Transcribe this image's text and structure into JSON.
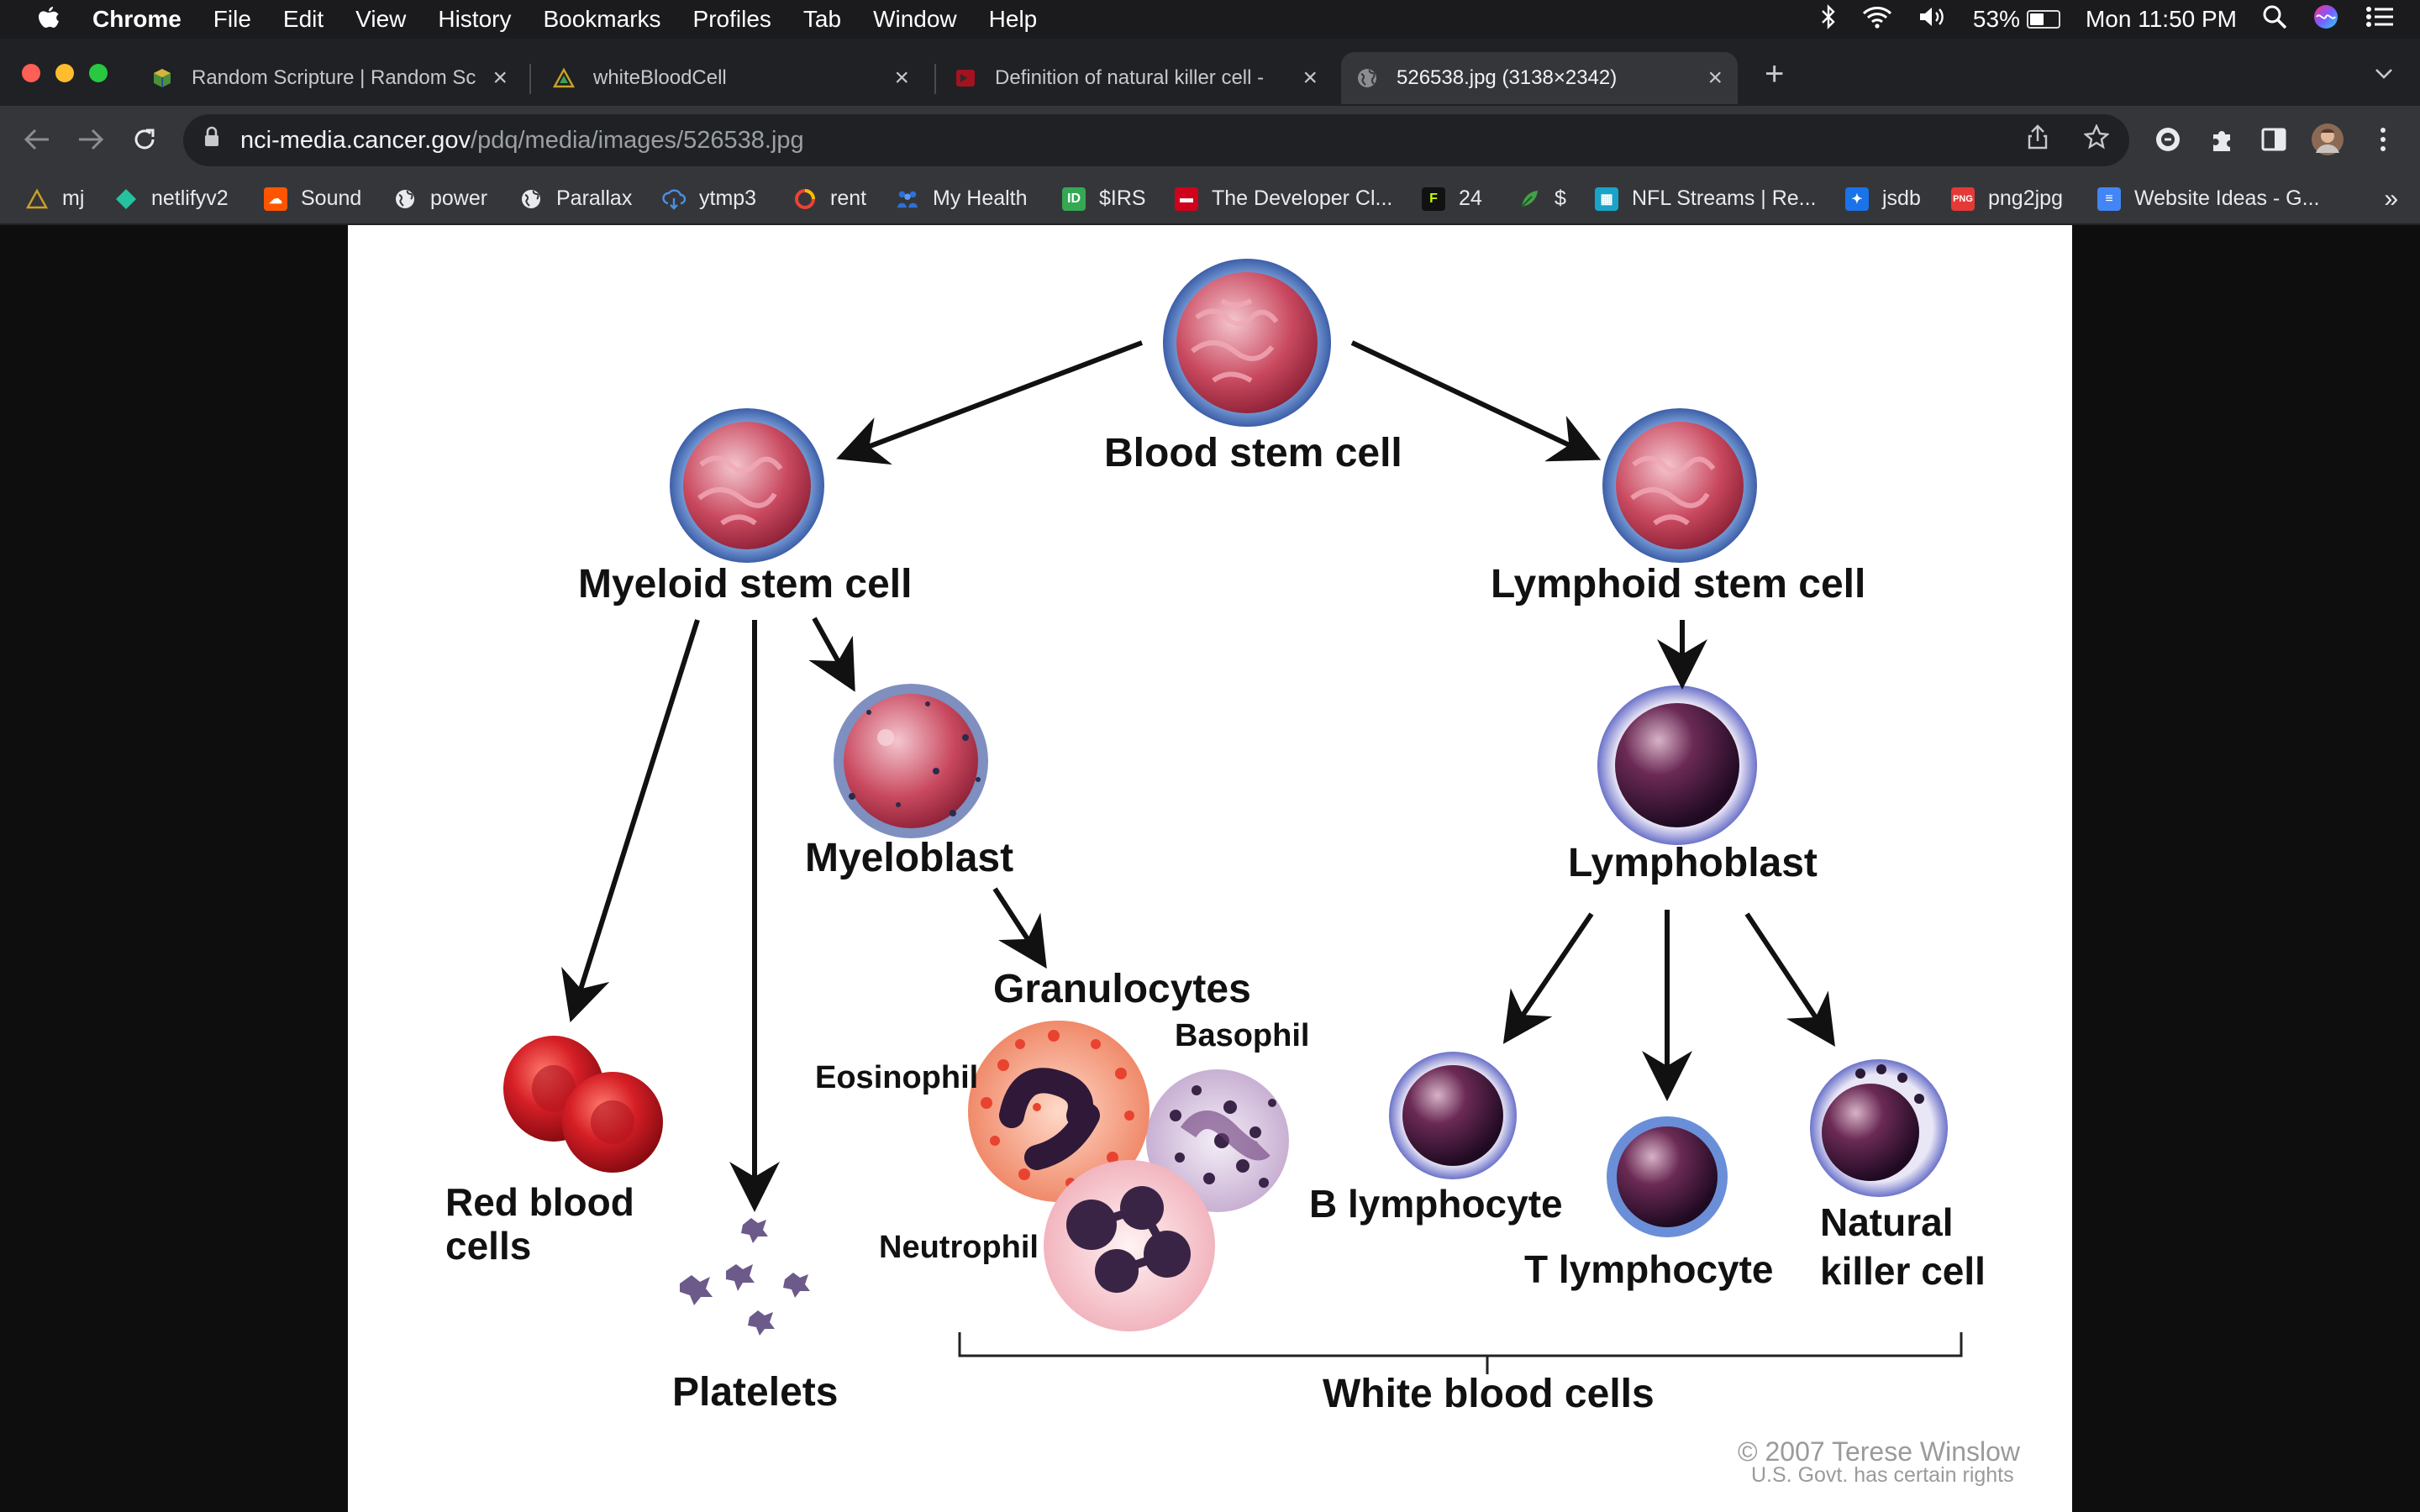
{
  "menubar": {
    "app": "Chrome",
    "items": [
      "File",
      "Edit",
      "View",
      "History",
      "Bookmarks",
      "Profiles",
      "Tab",
      "Window",
      "Help"
    ],
    "battery_percent": "53%",
    "battery_level": 0.53,
    "clock": "Mon 11:50 PM"
  },
  "tabs": [
    {
      "title": "Random Scripture | Random Sc",
      "icon": "cube-icon",
      "active": false
    },
    {
      "title": "whiteBloodCell",
      "icon": "triangle-icon",
      "active": false
    },
    {
      "title": "Definition of natural killer cell -",
      "icon": "nci-icon",
      "active": false
    },
    {
      "title": "526538.jpg (3138×2342)",
      "icon": "globe-icon",
      "active": true
    }
  ],
  "address": {
    "host": "nci-media.cancer.gov",
    "path": "/pdq/media/images/526538.jpg"
  },
  "bookmarks": [
    {
      "label": "mj",
      "color": "#c9a227"
    },
    {
      "label": "netlifyv2",
      "color": "#25c2a0"
    },
    {
      "label": "Sound",
      "color": "#ff5500"
    },
    {
      "label": "power",
      "color": "#e8eaed"
    },
    {
      "label": "Parallax",
      "color": "#e8eaed"
    },
    {
      "label": "ytmp3",
      "color": "#4a90e2"
    },
    {
      "label": "rent",
      "color": "#ea4335"
    },
    {
      "label": "My Health",
      "color": "#2f6fd6"
    },
    {
      "label": "$IRS",
      "color": "#34a853"
    },
    {
      "label": "The Developer Cl...",
      "color": "#d0021b"
    },
    {
      "label": "24",
      "color": "#c6ff00"
    },
    {
      "label": "$",
      "color": "#43a047"
    },
    {
      "label": "NFL Streams | Re...",
      "color": "#1aa3c9"
    },
    {
      "label": "jsdb",
      "color": "#1a73e8"
    },
    {
      "label": "png2jpg",
      "color": "#e53935"
    },
    {
      "label": "Website Ideas - G...",
      "color": "#4285f4"
    }
  ],
  "bookmarks_more": "»",
  "diagram": {
    "blood_stem_cell": "Blood stem cell",
    "myeloid_stem_cell": "Myeloid stem cell",
    "lymphoid_stem_cell": "Lymphoid stem cell",
    "myeloblast": "Myeloblast",
    "lymphoblast": "Lymphoblast",
    "granulocytes": "Granulocytes",
    "basophil": "Basophil",
    "eosinophil": "Eosinophil",
    "neutrophil": "Neutrophil",
    "red_blood_cells_1": "Red blood",
    "red_blood_cells_2": "cells",
    "platelets": "Platelets",
    "b_lymphocyte": "B lymphocyte",
    "t_lymphocyte": "T lymphocyte",
    "nk_cell_1": "Natural",
    "nk_cell_2": "killer cell",
    "white_blood_cells": "White blood cells",
    "copyright": "© 2007 Terese Winslow",
    "rights": "U.S. Govt. has certain rights"
  }
}
